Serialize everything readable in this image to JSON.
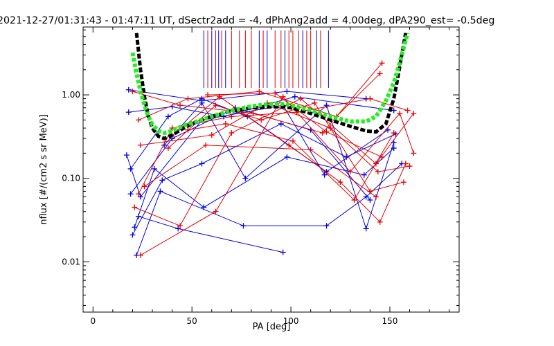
{
  "chart_data": {
    "type": "line",
    "title": "2021-12-27/01:31:43 - 01:47:11 UT, dSectr2add = -4, dPhAng2add = 4.00deg, dPA290_est=  -0.5deg",
    "xlabel": "PA [deg]",
    "ylabel": "nflux [#/(cm2 s sr MeV)]",
    "xlim": [
      -5,
      185
    ],
    "ylim": [
      0.0025,
      6.5
    ],
    "yscale": "log",
    "xticks": [
      0,
      50,
      100,
      150
    ],
    "xtick_labels": [
      "0",
      "50",
      "100",
      "150"
    ],
    "yticks": [
      0.01,
      0.1,
      1.0
    ],
    "ytick_labels": [
      "0.01",
      "0.10",
      "1.00"
    ],
    "grid": false,
    "colors": {
      "red": "#e00000",
      "blue": "#0000e0",
      "black": "#000000",
      "green": "#22ee22"
    },
    "vertical_markers": [
      {
        "x": 56,
        "color": "#0000e0"
      },
      {
        "x": 58,
        "color": "#e00000"
      },
      {
        "x": 60,
        "color": "#0000e0"
      },
      {
        "x": 62,
        "color": "#e00000"
      },
      {
        "x": 63.5,
        "color": "#0000e0"
      },
      {
        "x": 65,
        "color": "#e00000"
      },
      {
        "x": 67,
        "color": "#0000e0"
      },
      {
        "x": 70,
        "color": "#e00000"
      },
      {
        "x": 74,
        "color": "#e00000"
      },
      {
        "x": 77,
        "color": "#e00000"
      },
      {
        "x": 80,
        "color": "#e00000"
      },
      {
        "x": 84,
        "color": "#0000e0"
      },
      {
        "x": 86,
        "color": "#e00000"
      },
      {
        "x": 88,
        "color": "#0000e0"
      },
      {
        "x": 92,
        "color": "#e00000"
      },
      {
        "x": 95,
        "color": "#e00000"
      },
      {
        "x": 97,
        "color": "#0000e0"
      },
      {
        "x": 99,
        "color": "#e00000"
      },
      {
        "x": 101,
        "color": "#e00000"
      },
      {
        "x": 104,
        "color": "#e00000"
      },
      {
        "x": 106,
        "color": "#0000e0"
      },
      {
        "x": 108,
        "color": "#e00000"
      },
      {
        "x": 110,
        "color": "#e00000"
      },
      {
        "x": 113,
        "color": "#0000e0"
      },
      {
        "x": 115,
        "color": "#e00000"
      },
      {
        "x": 119,
        "color": "#0000e0"
      }
    ],
    "series": [
      {
        "color": "#0000e0",
        "x": [
          18,
          55,
          98,
          138
        ],
        "y": [
          1.15,
          0.85,
          1.1,
          0.9
        ]
      },
      {
        "color": "#0000e0",
        "x": [
          18,
          40,
          66,
          102,
          152
        ],
        "y": [
          0.62,
          0.72,
          0.55,
          0.95,
          0.65
        ]
      },
      {
        "color": "#0000e0",
        "x": [
          19,
          38,
          55,
          78,
          118,
          149
        ],
        "y": [
          0.13,
          0.55,
          0.9,
          0.55,
          0.12,
          0.38
        ]
      },
      {
        "color": "#0000e0",
        "x": [
          19,
          40,
          72,
          110,
          140
        ],
        "y": [
          0.065,
          0.3,
          0.7,
          0.38,
          0.055
        ]
      },
      {
        "color": "#0000e0",
        "x": [
          20,
          35,
          55,
          95,
          128,
          153
        ],
        "y": [
          0.021,
          0.095,
          0.15,
          0.45,
          0.18,
          0.34
        ]
      },
      {
        "color": "#0000e0",
        "x": [
          21,
          31,
          56,
          98,
          137,
          152
        ],
        "y": [
          0.026,
          0.13,
          0.045,
          0.18,
          0.11,
          0.23
        ]
      },
      {
        "color": "#0000e0",
        "x": [
          22,
          34,
          76,
          118,
          138,
          156
        ],
        "y": [
          0.012,
          0.07,
          0.027,
          0.027,
          0.06,
          0.15
        ]
      },
      {
        "color": "#0000e0",
        "x": [
          17,
          24,
          55,
          96,
          117
        ],
        "y": [
          0.19,
          0.06,
          0.5,
          0.75,
          0.11
        ]
      },
      {
        "color": "#0000e0",
        "x": [
          23,
          43,
          96
        ],
        "y": [
          0.035,
          0.025,
          0.013
        ]
      },
      {
        "color": "#0000e0",
        "x": [
          36,
          55,
          77,
          118,
          138,
          152
        ],
        "y": [
          0.25,
          0.8,
          0.1,
          0.75,
          0.025,
          0.27
        ]
      },
      {
        "color": "#e00000",
        "x": [
          20,
          44,
          81,
          116,
          146
        ],
        "y": [
          1.1,
          0.75,
          0.6,
          0.35,
          2.4
        ]
      },
      {
        "color": "#e00000",
        "x": [
          23,
          48,
          84,
          123,
          145
        ],
        "y": [
          0.5,
          0.9,
          1.1,
          0.55,
          1.8
        ]
      },
      {
        "color": "#e00000",
        "x": [
          23,
          40,
          70,
          103,
          140,
          159
        ],
        "y": [
          0.065,
          0.4,
          0.55,
          0.62,
          0.9,
          0.65
        ]
      },
      {
        "color": "#e00000",
        "x": [
          21,
          44,
          70,
          105,
          143,
          162
        ],
        "y": [
          0.045,
          0.027,
          0.35,
          0.9,
          0.15,
          0.6
        ]
      },
      {
        "color": "#e00000",
        "x": [
          24,
          62,
          96,
          130,
          155,
          162
        ],
        "y": [
          0.012,
          0.04,
          0.95,
          0.12,
          0.6,
          0.2
        ]
      },
      {
        "color": "#e00000",
        "x": [
          24,
          60,
          88,
          120,
          144,
          160
        ],
        "y": [
          0.25,
          0.33,
          0.8,
          0.4,
          0.12,
          0.14
        ]
      },
      {
        "color": "#e00000",
        "x": [
          38,
          62,
          85,
          112,
          140,
          157
        ],
        "y": [
          0.23,
          0.75,
          0.5,
          0.8,
          0.07,
          0.09
        ]
      },
      {
        "color": "#e00000",
        "x": [
          40,
          64,
          99,
          125,
          145,
          158
        ],
        "y": [
          0.32,
          0.95,
          0.25,
          0.09,
          0.03,
          0.15
        ]
      },
      {
        "color": "#e00000",
        "x": [
          48,
          67,
          101,
          132,
          152
        ],
        "y": [
          0.38,
          0.45,
          0.28,
          0.055,
          0.35
        ]
      },
      {
        "color": "#e00000",
        "x": [
          26,
          57,
          110,
          143
        ],
        "y": [
          0.08,
          0.25,
          0.22,
          0.06
        ]
      },
      {
        "color": "#e00000",
        "x": [
          58,
          92,
          118,
          146
        ],
        "y": [
          1.0,
          1.05,
          0.36,
          0.18
        ]
      },
      {
        "color": "#000000",
        "dashed": true,
        "x": [
          22,
          24,
          26,
          28,
          30,
          33,
          36,
          40,
          45,
          50,
          60,
          70,
          80,
          90,
          96,
          100,
          110,
          120,
          130,
          138,
          143,
          148,
          152,
          154,
          156,
          158
        ],
        "y": [
          5.5,
          2.0,
          0.95,
          0.55,
          0.4,
          0.32,
          0.3,
          0.33,
          0.39,
          0.45,
          0.55,
          0.64,
          0.7,
          0.72,
          0.72,
          0.7,
          0.6,
          0.5,
          0.42,
          0.37,
          0.36,
          0.45,
          0.9,
          1.6,
          3.0,
          5.5
        ]
      },
      {
        "color": "#22ee22",
        "dashed": true,
        "x": [
          20,
          22,
          24,
          26,
          28,
          30,
          33,
          36,
          40,
          45,
          50,
          60,
          70,
          80,
          90,
          96,
          100,
          110,
          120,
          130,
          138,
          143,
          148,
          152,
          154,
          156,
          158,
          159
        ],
        "y": [
          3.2,
          1.8,
          1.1,
          0.75,
          0.55,
          0.44,
          0.37,
          0.35,
          0.37,
          0.42,
          0.46,
          0.55,
          0.65,
          0.73,
          0.78,
          0.78,
          0.75,
          0.65,
          0.55,
          0.48,
          0.48,
          0.55,
          0.85,
          1.4,
          2.0,
          3.0,
          4.5,
          5.5
        ]
      }
    ]
  }
}
